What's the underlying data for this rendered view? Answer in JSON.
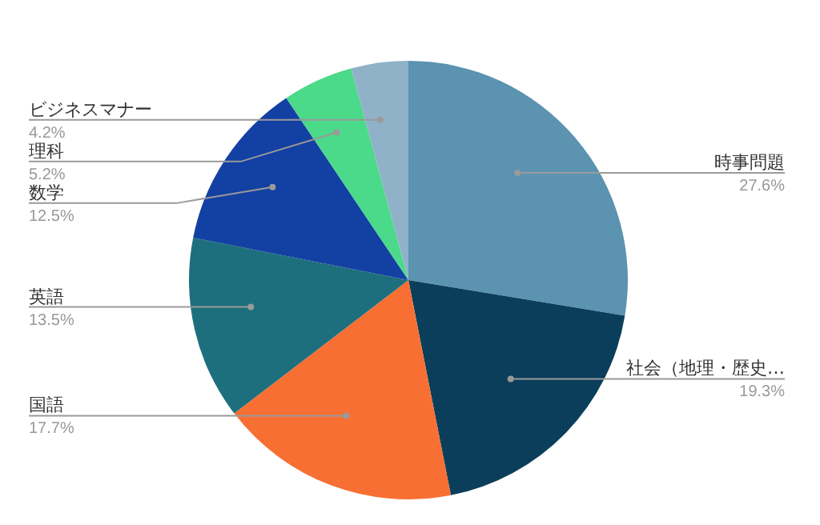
{
  "chart_data": {
    "type": "pie",
    "categories": [
      "時事問題",
      "社会（地理・歴史…",
      "国語",
      "英語",
      "数学",
      "理科",
      "ビジネスマナー"
    ],
    "values": [
      27.6,
      19.3,
      17.7,
      13.5,
      12.5,
      5.2,
      4.2
    ],
    "value_labels": [
      "27.6%",
      "19.3%",
      "17.7%",
      "13.5%",
      "12.5%",
      "5.2%",
      "4.2%"
    ],
    "colors": [
      "#5b93b0",
      "#0b3e5a",
      "#f76f33",
      "#1e6f7d",
      "#1340a3",
      "#4bd98a",
      "#8fb2c8"
    ],
    "legend": false
  }
}
